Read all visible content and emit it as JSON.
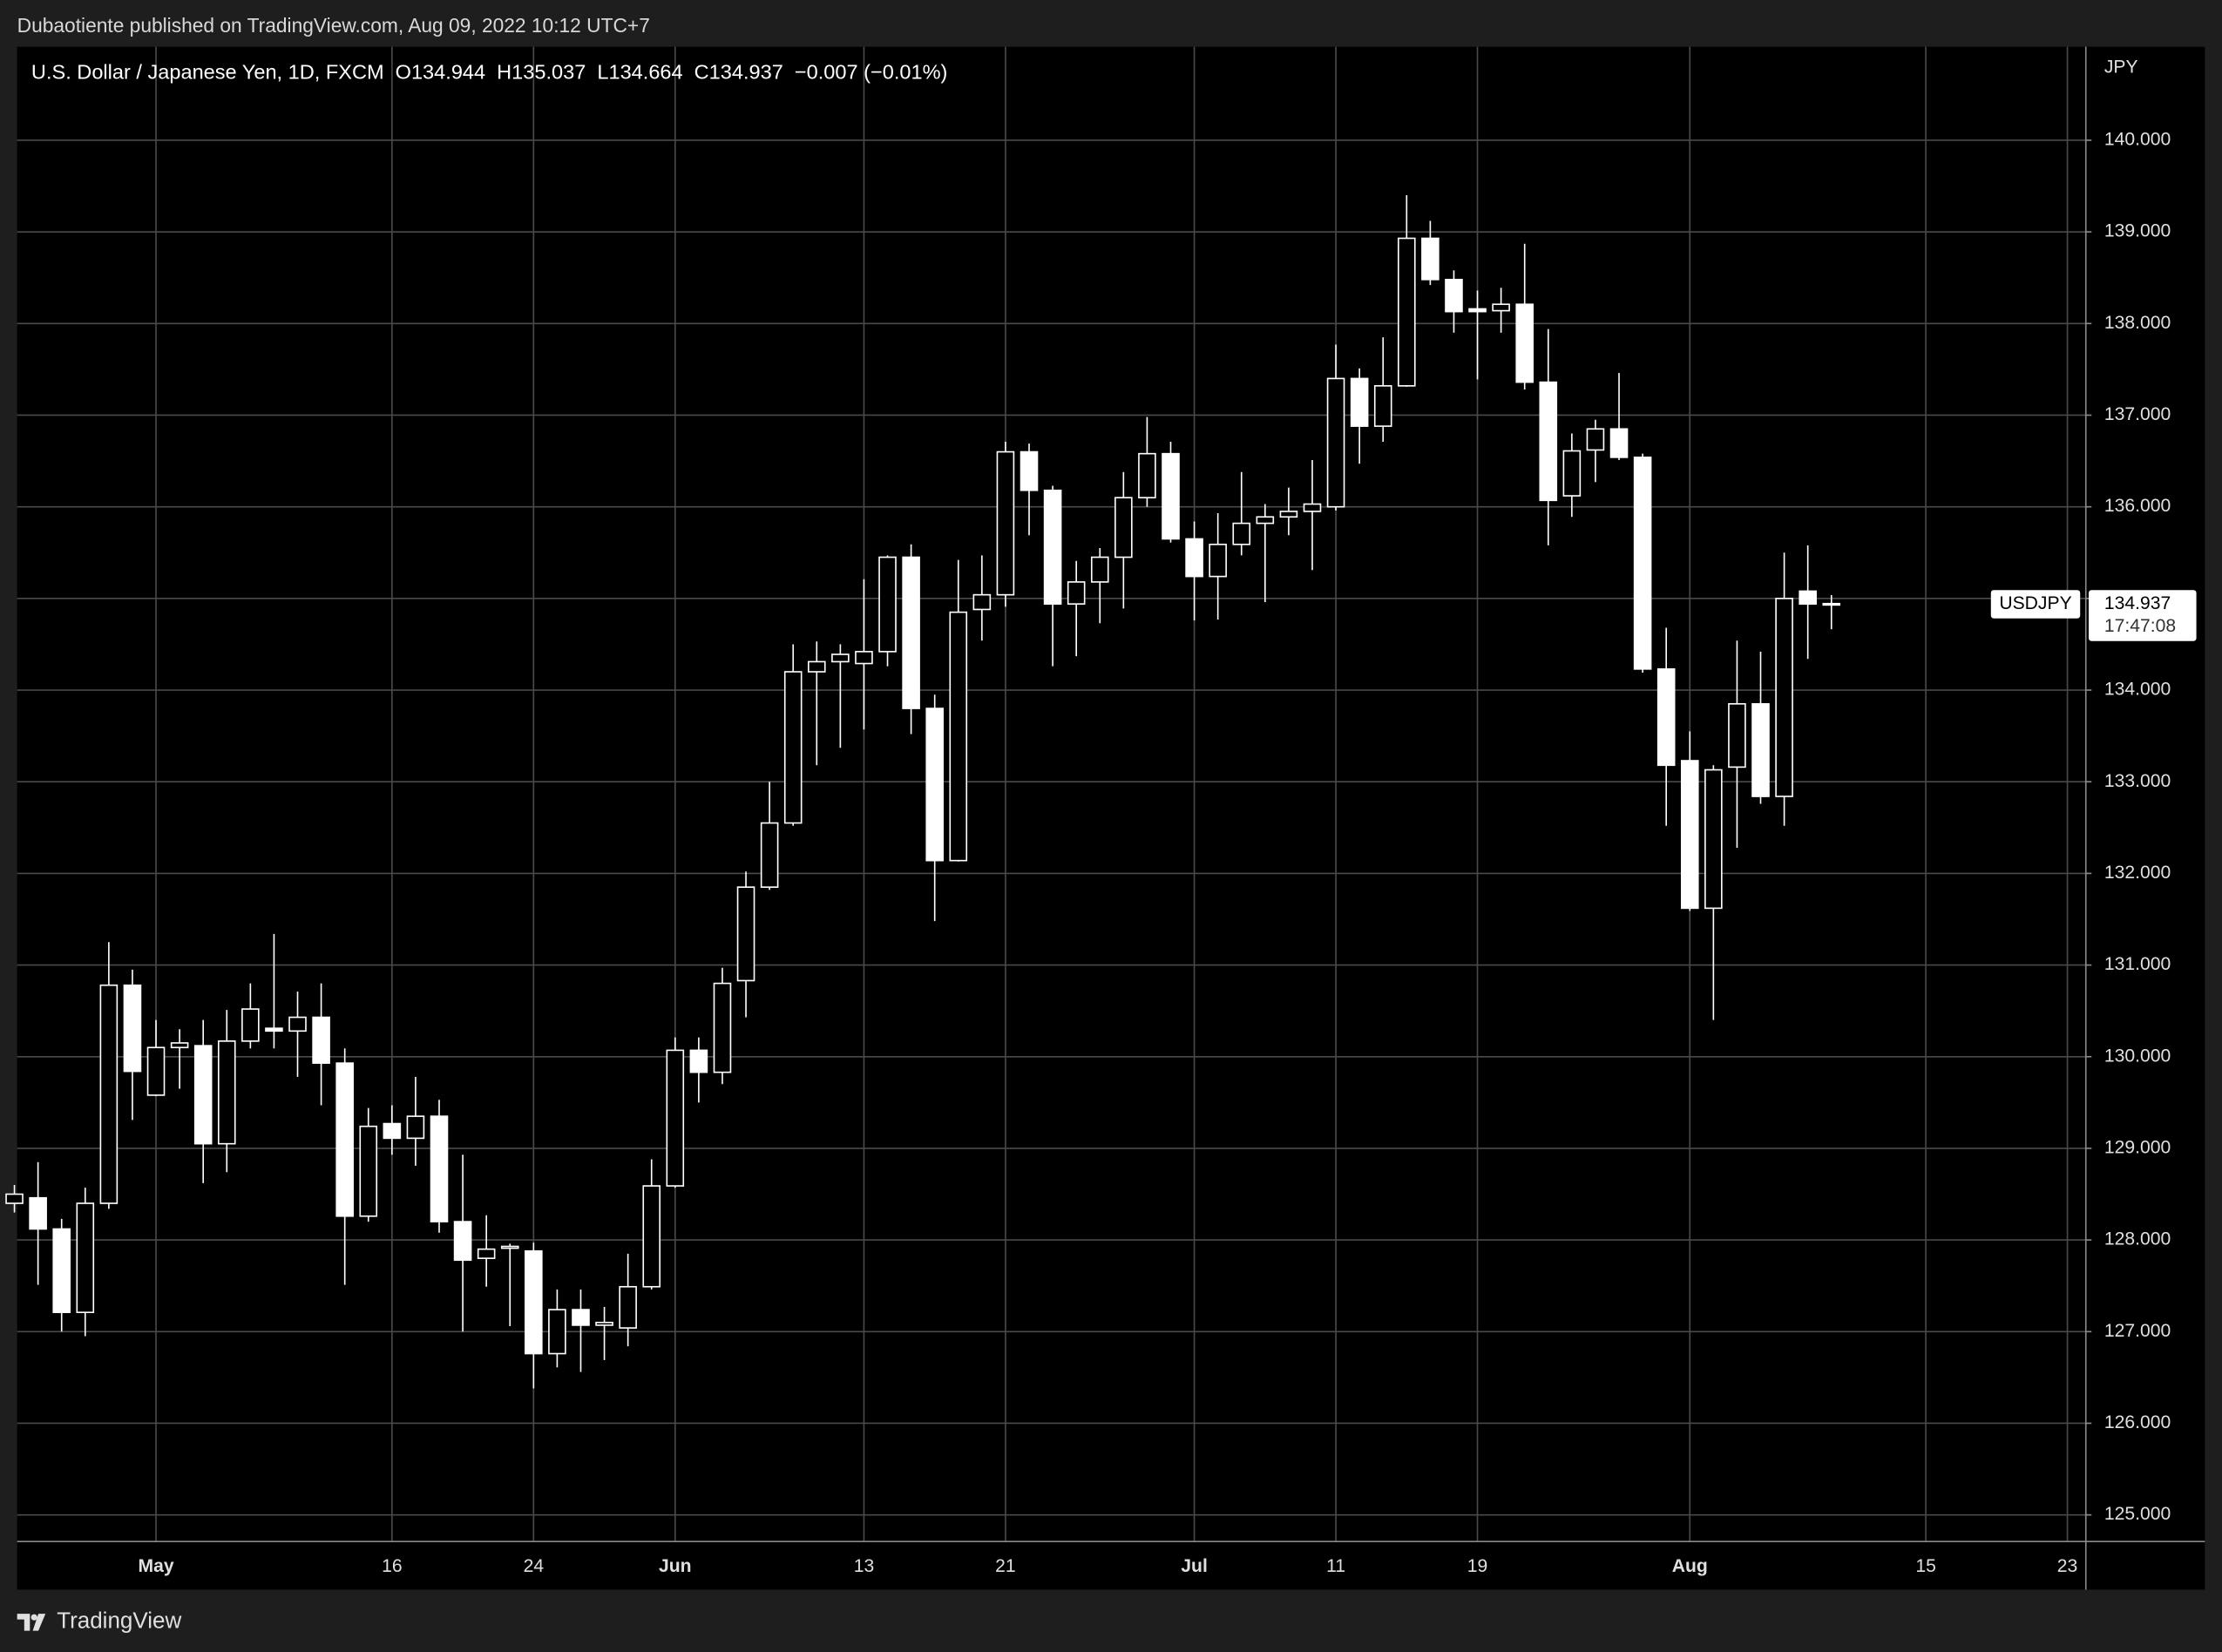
{
  "header": {
    "publisher": "Dubaotiente published on TradingView.com, Aug 09, 2022 10:12 UTC+7"
  },
  "chart_data": {
    "type": "candlestick",
    "title": "U.S. Dollar / Japanese Yen, 1D, FXCM",
    "ohlc_legend": [
      "O134.944",
      "H135.037",
      "L134.664",
      "C134.937",
      "−0.007 (−0.01%)"
    ],
    "currency": "JPY",
    "symbol": "USDJPY",
    "last_price": 134.937,
    "countdown": "17:47:08",
    "color": "#ffffff",
    "grid": true,
    "categories": [
      null,
      null,
      null,
      null,
      null,
      null,
      "May",
      null,
      null,
      null,
      null,
      null,
      null,
      null,
      null,
      null,
      "16",
      null,
      null,
      null,
      null,
      null,
      "24",
      null,
      null,
      null,
      null,
      null,
      "Jun",
      null,
      null,
      null,
      null,
      null,
      null,
      null,
      "13",
      null,
      null,
      null,
      null,
      null,
      "21",
      null,
      null,
      null,
      null,
      null,
      null,
      null,
      "Jul",
      null,
      null,
      null,
      null,
      null,
      "11",
      null,
      null,
      null,
      null,
      null,
      "19",
      null,
      null,
      null,
      null,
      null,
      null,
      null,
      null,
      "Aug",
      null,
      null,
      null,
      null,
      null,
      null,
      null,
      null,
      null,
      "15",
      null,
      null,
      null,
      null,
      null,
      "23"
    ],
    "open": [
      128.4,
      128.46,
      128.12,
      127.21,
      128.4,
      130.78,
      129.58,
      130.1,
      130.12,
      129.05,
      130.17,
      130.31,
      130.28,
      130.43,
      129.93,
      128.26,
      129.27,
      129.11,
      129.35,
      128.2,
      127.8,
      127.91,
      127.88,
      126.76,
      127.24,
      127.07,
      127.04,
      127.49,
      128.59,
      130.07,
      129.83,
      130.83,
      131.85,
      132.55,
      134.2,
      134.31,
      134.29,
      134.42,
      135.45,
      133.8,
      132.14,
      134.88,
      135.04,
      136.6,
      136.18,
      134.94,
      135.18,
      135.45,
      136.1,
      136.58,
      135.65,
      135.24,
      135.59,
      135.82,
      135.89,
      135.95,
      136.0,
      137.4,
      136.88,
      137.32,
      138.93,
      138.48,
      138.16,
      138.14,
      138.21,
      137.36,
      136.12,
      136.62,
      136.85,
      136.54,
      134.23,
      133.23,
      131.62,
      133.16,
      133.85,
      132.84,
      135.08,
      134.944,
      null,
      null,
      null,
      null,
      null,
      null,
      null,
      null,
      null,
      null
    ],
    "high": [
      128.6,
      128.85,
      128.23,
      128.57,
      131.25,
      130.95,
      130.4,
      130.3,
      130.4,
      130.51,
      130.8,
      131.34,
      130.71,
      130.8,
      130.09,
      129.44,
      129.47,
      129.78,
      129.53,
      128.93,
      128.27,
      127.96,
      127.97,
      127.46,
      127.46,
      127.27,
      127.85,
      128.88,
      130.21,
      130.21,
      130.97,
      132.02,
      133.0,
      134.5,
      134.53,
      134.5,
      135.21,
      135.47,
      135.59,
      133.95,
      135.42,
      135.47,
      136.71,
      136.69,
      136.23,
      135.41,
      135.55,
      136.38,
      136.98,
      136.71,
      135.84,
      135.93,
      136.38,
      136.03,
      136.21,
      136.51,
      137.77,
      137.51,
      137.85,
      139.4,
      139.12,
      138.58,
      138.36,
      138.39,
      138.87,
      137.94,
      136.8,
      136.95,
      137.46,
      136.58,
      134.68,
      133.55,
      133.18,
      134.54,
      134.42,
      135.5,
      135.58,
      135.037,
      null,
      null,
      null,
      null,
      null,
      null,
      null,
      null,
      null,
      null
    ],
    "low": [
      128.3,
      127.51,
      127.0,
      126.95,
      128.34,
      129.31,
      129.57,
      129.65,
      128.62,
      128.74,
      130.09,
      130.09,
      129.78,
      129.47,
      127.51,
      128.2,
      128.93,
      128.81,
      128.08,
      127.0,
      127.49,
      127.06,
      126.38,
      126.61,
      126.56,
      126.69,
      126.84,
      127.46,
      128.57,
      129.5,
      129.7,
      130.43,
      131.82,
      132.52,
      133.18,
      133.37,
      133.57,
      134.26,
      133.52,
      131.48,
      132.13,
      134.54,
      134.91,
      135.69,
      134.26,
      134.37,
      134.73,
      134.89,
      136.0,
      135.61,
      134.76,
      134.77,
      135.47,
      134.96,
      135.69,
      135.31,
      135.96,
      136.47,
      136.71,
      137.31,
      138.42,
      137.9,
      137.39,
      137.9,
      137.28,
      135.58,
      135.89,
      136.27,
      136.51,
      134.19,
      132.52,
      131.59,
      130.4,
      132.28,
      132.76,
      132.52,
      134.34,
      134.664,
      null,
      null,
      null,
      null,
      null,
      null,
      null,
      null,
      null,
      null
    ],
    "close": [
      128.5,
      128.12,
      127.21,
      128.4,
      130.78,
      129.84,
      130.1,
      130.15,
      129.05,
      130.17,
      130.52,
      130.28,
      130.43,
      129.93,
      128.26,
      129.24,
      129.11,
      129.35,
      128.2,
      127.78,
      127.9,
      127.93,
      126.76,
      127.24,
      127.07,
      127.1,
      127.49,
      128.59,
      130.07,
      129.83,
      130.8,
      131.85,
      132.55,
      134.2,
      134.31,
      134.39,
      134.42,
      135.45,
      133.8,
      132.14,
      134.85,
      135.04,
      136.6,
      136.18,
      134.94,
      135.18,
      135.45,
      136.1,
      136.58,
      135.65,
      135.24,
      135.59,
      135.82,
      135.89,
      135.95,
      136.03,
      137.4,
      136.88,
      137.32,
      138.93,
      138.48,
      138.13,
      138.13,
      138.21,
      137.36,
      136.07,
      136.61,
      136.85,
      136.54,
      134.23,
      133.18,
      131.62,
      133.13,
      133.85,
      132.84,
      135.0,
      134.94,
      134.937,
      null,
      null,
      null,
      null,
      null,
      null,
      null,
      null,
      null,
      null
    ],
    "ylim": [
      124.71,
      141.02
    ],
    "yticks": [
      {
        "value": 125,
        "label": "125.000"
      },
      {
        "value": 126,
        "label": "126.000"
      },
      {
        "value": 127,
        "label": "127.000"
      },
      {
        "value": 128,
        "label": "128.000"
      },
      {
        "value": 129,
        "label": "129.000"
      },
      {
        "value": 130,
        "label": "130.000"
      },
      {
        "value": 131,
        "label": "131.000"
      },
      {
        "value": 132,
        "label": "132.000"
      },
      {
        "value": 133,
        "label": "133.000"
      },
      {
        "value": 134,
        "label": "134.000"
      },
      {
        "value": 135,
        "label": "135.000"
      },
      {
        "value": 136,
        "label": "136.000"
      },
      {
        "value": 137,
        "label": "137.000"
      },
      {
        "value": 138,
        "label": "138.000"
      },
      {
        "value": 139,
        "label": "139.000"
      },
      {
        "value": 140,
        "label": "140.000"
      }
    ]
  },
  "footer": {
    "brand": "TradingView"
  }
}
